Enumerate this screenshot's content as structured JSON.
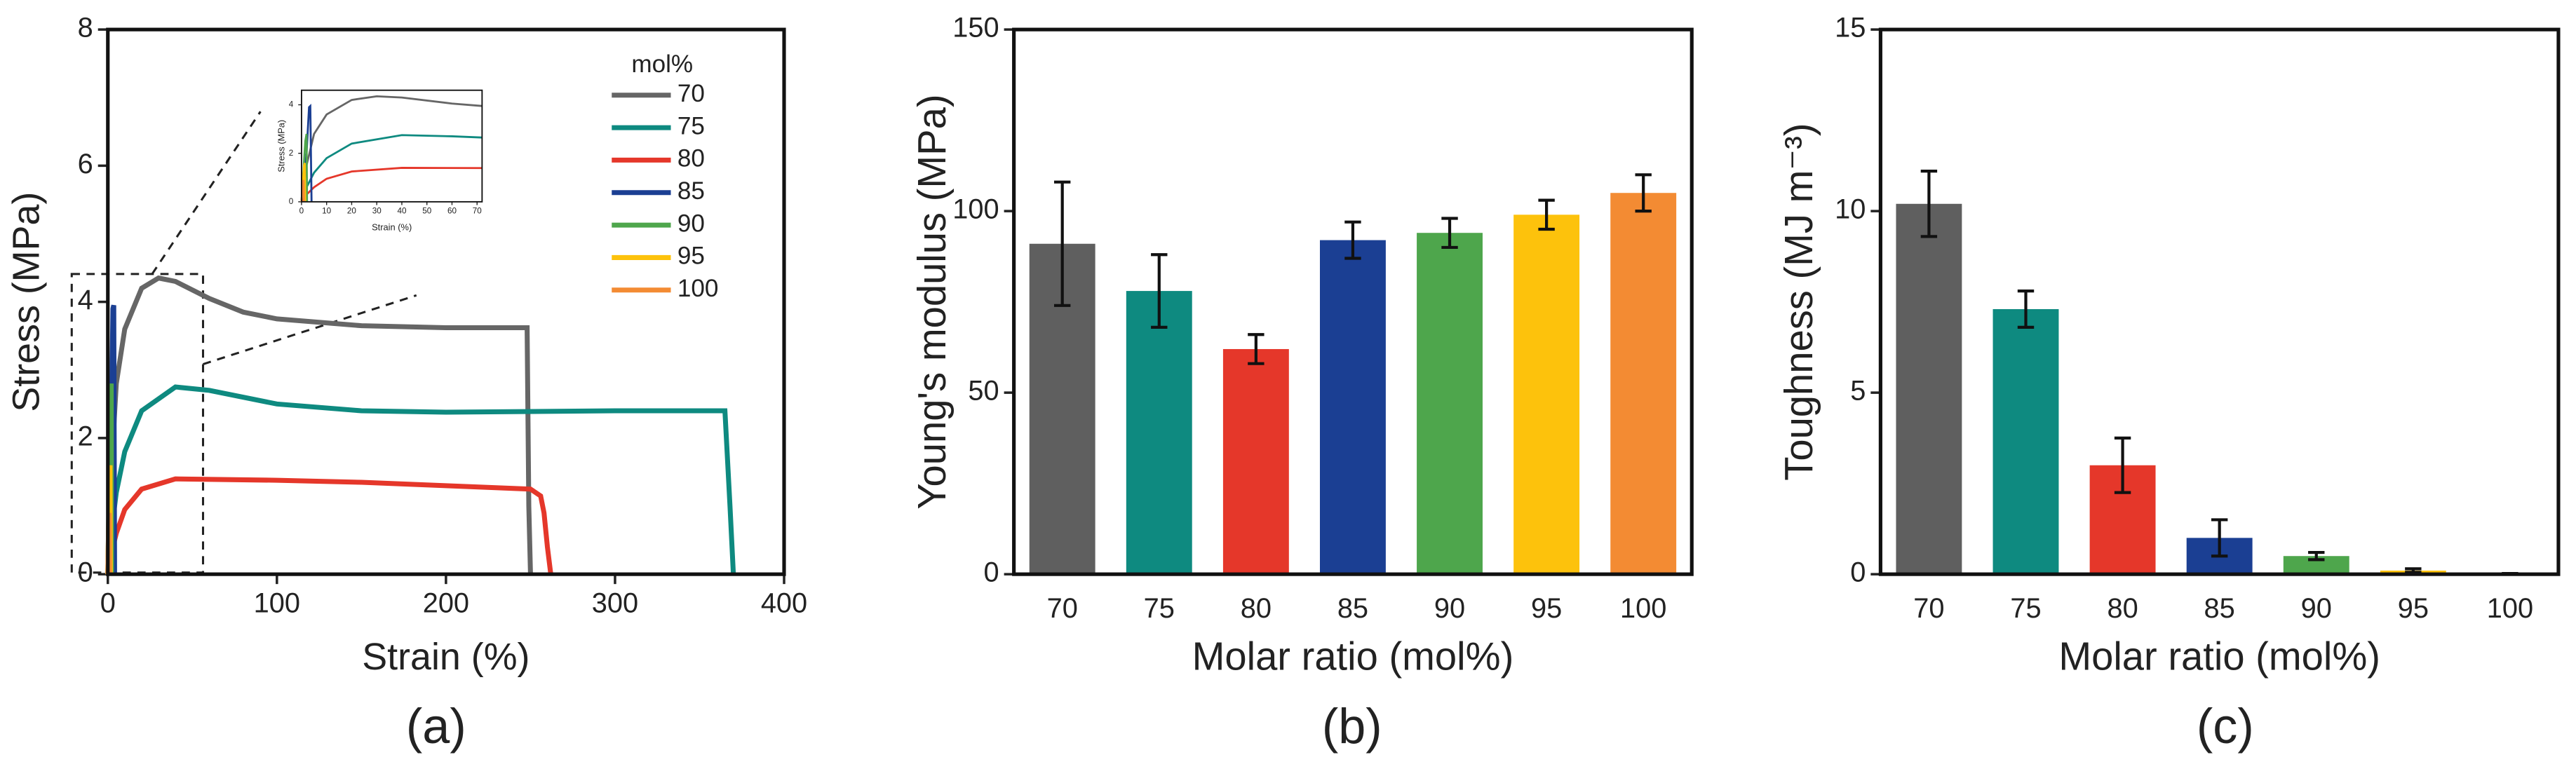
{
  "chart_data": [
    {
      "type": "line",
      "panel": "(a)",
      "x_label": "Strain (%)",
      "y_label": "Stress (MPa)",
      "xlim": [
        0,
        400
      ],
      "xticks": [
        0,
        100,
        200,
        300,
        400
      ],
      "ylim": [
        0,
        8
      ],
      "yticks": [
        0,
        2,
        4,
        6,
        8
      ],
      "legend_title": "mol%",
      "legend": "upper right",
      "series": [
        {
          "name": "70",
          "color": "#666666",
          "x": [
            0,
            2,
            5,
            10,
            20,
            30,
            40,
            60,
            80,
            100,
            150,
            200,
            248,
            249,
            250
          ],
          "values": [
            0,
            1.5,
            2.8,
            3.6,
            4.2,
            4.35,
            4.3,
            4.05,
            3.85,
            3.75,
            3.65,
            3.62,
            3.62,
            1,
            0
          ]
        },
        {
          "name": "75",
          "color": "#0e8a80",
          "x": [
            0,
            2,
            5,
            10,
            20,
            40,
            60,
            100,
            150,
            200,
            300,
            365,
            368,
            370
          ],
          "values": [
            0,
            0.6,
            1.2,
            1.8,
            2.4,
            2.75,
            2.7,
            2.5,
            2.4,
            2.38,
            2.4,
            2.4,
            1,
            0
          ]
        },
        {
          "name": "80",
          "color": "#e5372a",
          "x": [
            0,
            2,
            5,
            10,
            20,
            40,
            100,
            150,
            200,
            250,
            256,
            258,
            260,
            262
          ],
          "values": [
            0,
            0.3,
            0.6,
            0.95,
            1.25,
            1.4,
            1.38,
            1.35,
            1.3,
            1.25,
            1.15,
            0.9,
            0.4,
            0
          ]
        },
        {
          "name": "85",
          "color": "#1b3f93",
          "x": [
            0,
            2,
            3,
            3.5,
            4
          ],
          "values": [
            0,
            2,
            3.9,
            3.95,
            0
          ]
        },
        {
          "name": "90",
          "color": "#4ea64c",
          "x": [
            0,
            1.5,
            2,
            2.2
          ],
          "values": [
            0,
            2.5,
            2.8,
            0
          ]
        },
        {
          "name": "95",
          "color": "#fdc20c",
          "x": [
            0,
            1,
            1.3,
            1.5
          ],
          "values": [
            0,
            1.5,
            1.6,
            0
          ]
        },
        {
          "name": "100",
          "color": "#f38b33",
          "x": [
            0,
            0.5,
            0.8,
            1
          ],
          "values": [
            0,
            0.8,
            0.9,
            0
          ]
        }
      ]
    },
    {
      "type": "line",
      "x_label": "Strain (%)",
      "y_label": "Stress (MPa)",
      "xlim": [
        0,
        72
      ],
      "xticks": [
        0,
        10,
        20,
        30,
        40,
        50,
        60,
        70
      ],
      "ylim": [
        0,
        4.6
      ],
      "yticks": [
        0,
        2,
        4
      ],
      "series": [
        {
          "color": "#666666",
          "x": [
            0,
            2,
            5,
            10,
            20,
            30,
            40,
            60,
            72
          ],
          "values": [
            0,
            1.5,
            2.8,
            3.6,
            4.2,
            4.35,
            4.3,
            4.05,
            3.95
          ]
        },
        {
          "color": "#0e8a80",
          "x": [
            0,
            2,
            5,
            10,
            20,
            40,
            60,
            72
          ],
          "values": [
            0,
            0.6,
            1.2,
            1.8,
            2.4,
            2.75,
            2.7,
            2.65
          ]
        },
        {
          "color": "#e5372a",
          "x": [
            0,
            2,
            5,
            10,
            20,
            40,
            72
          ],
          "values": [
            0,
            0.3,
            0.6,
            0.95,
            1.25,
            1.4,
            1.39
          ]
        },
        {
          "color": "#1b3f93",
          "x": [
            0,
            2,
            3,
            3.5,
            4
          ],
          "values": [
            0,
            2,
            3.9,
            3.95,
            0
          ]
        },
        {
          "color": "#4ea64c",
          "x": [
            0,
            1.5,
            2,
            2.2
          ],
          "values": [
            0,
            2.5,
            2.8,
            0
          ]
        },
        {
          "color": "#fdc20c",
          "x": [
            0,
            1,
            1.3,
            1.5
          ],
          "values": [
            0,
            1.5,
            1.6,
            0
          ]
        },
        {
          "color": "#f38b33",
          "x": [
            0,
            0.5,
            0.8,
            1
          ],
          "values": [
            0,
            0.8,
            0.9,
            0
          ]
        }
      ]
    },
    {
      "type": "bar",
      "panel": "(b)",
      "x_label": "Molar ratio (mol%)",
      "y_label": "Young's modulus (MPa)",
      "categories": [
        "70",
        "75",
        "80",
        "85",
        "90",
        "95",
        "100"
      ],
      "values": [
        91,
        78,
        62,
        92,
        94,
        99,
        105
      ],
      "errors": [
        17,
        10,
        4,
        5,
        4,
        4,
        5
      ],
      "colors": [
        "#5f5f5f",
        "#0e8a80",
        "#e5372a",
        "#1b3f93",
        "#4ea64c",
        "#fdc20c",
        "#f38b33"
      ],
      "ylim": [
        0,
        150
      ],
      "yticks": [
        0,
        50,
        100,
        150
      ]
    },
    {
      "type": "bar",
      "panel": "(c)",
      "x_label": "Molar ratio (mol%)",
      "y_label": "Toughness (MJ m⁻³)",
      "categories": [
        "70",
        "75",
        "80",
        "85",
        "90",
        "95",
        "100"
      ],
      "values": [
        10.2,
        7.3,
        3.0,
        1.0,
        0.5,
        0.1,
        0.02
      ],
      "errors": [
        0.9,
        0.5,
        0.75,
        0.5,
        0.1,
        0.05,
        0
      ],
      "colors": [
        "#5f5f5f",
        "#0e8a80",
        "#e5372a",
        "#1b3f93",
        "#4ea64c",
        "#fdc20c",
        "#f38b33"
      ],
      "ylim": [
        0,
        15
      ],
      "yticks": [
        0,
        5,
        10,
        15
      ]
    }
  ]
}
